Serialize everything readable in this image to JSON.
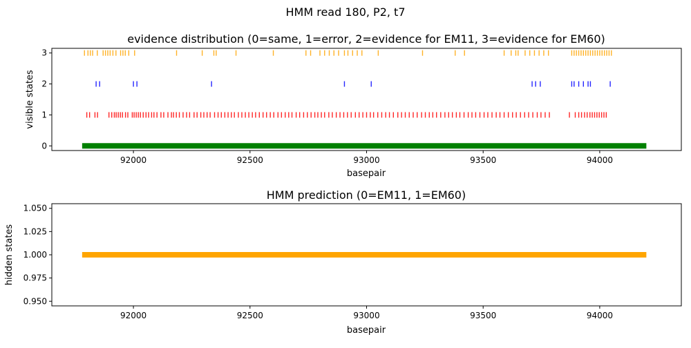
{
  "figure": {
    "suptitle": "HMM read 180, P2, t7"
  },
  "chart_data": [
    {
      "type": "scatter",
      "title": "evidence distribution (0=same, 1=error, 2=evidence for EM11, 3=evidence for EM60)",
      "xlabel": "basepair",
      "ylabel": "visible states",
      "xlim": [
        91650,
        94350
      ],
      "ylim": [
        -0.15,
        3.15
      ],
      "xticks": [
        92000,
        92500,
        93000,
        93500,
        94000
      ],
      "yticks": [
        0,
        1,
        2,
        3
      ],
      "grid": false,
      "series": [
        {
          "state": 0,
          "color": "#008000",
          "style": "band",
          "x_range": [
            91780,
            94200
          ]
        },
        {
          "state": 1,
          "color": "#ff0000",
          "x": [
            91800,
            91812,
            91835,
            91846,
            91895,
            91907,
            91918,
            91926,
            91935,
            91944,
            91953,
            91966,
            91976,
            91995,
            92003,
            92012,
            92021,
            92030,
            92042,
            92054,
            92065,
            92078,
            92088,
            92101,
            92118,
            92130,
            92148,
            92163,
            92172,
            92184,
            92197,
            92213,
            92228,
            92241,
            92260,
            92273,
            92289,
            92302,
            92316,
            92329,
            92348,
            92363,
            92377,
            92392,
            92406,
            92420,
            92433,
            92450,
            92465,
            92480,
            92495,
            92510,
            92524,
            92540,
            92556,
            92571,
            92587,
            92602,
            92620,
            92635,
            92651,
            92666,
            92680,
            92698,
            92713,
            92730,
            92746,
            92762,
            92778,
            92791,
            92806,
            92820,
            92838,
            92853,
            92870,
            92886,
            92902,
            92918,
            92934,
            92952,
            92968,
            92984,
            93000,
            93016,
            93030,
            93048,
            93065,
            93082,
            93098,
            93115,
            93134,
            93150,
            93166,
            93183,
            93200,
            93217,
            93236,
            93252,
            93269,
            93284,
            93300,
            93318,
            93336,
            93352,
            93368,
            93385,
            93400,
            93418,
            93436,
            93452,
            93468,
            93486,
            93504,
            93520,
            93538,
            93556,
            93572,
            93590,
            93608,
            93626,
            93642,
            93660,
            93678,
            93695,
            93713,
            93732,
            93748,
            93766,
            93784,
            93870,
            93895,
            93910,
            93922,
            93935,
            93946,
            93958,
            93968,
            93978,
            93988,
            93998,
            94008,
            94018,
            94028
          ]
        },
        {
          "state": 2,
          "color": "#0000ff",
          "x": [
            91840,
            91855,
            92000,
            92015,
            92335,
            92905,
            93020,
            93710,
            93725,
            93745,
            93880,
            93890,
            93910,
            93930,
            93950,
            93960,
            94045
          ]
        },
        {
          "state": 3,
          "color": "#ffa500",
          "x": [
            91790,
            91805,
            91815,
            91825,
            91845,
            91870,
            91880,
            91890,
            91900,
            91912,
            91925,
            91945,
            91955,
            91965,
            91980,
            92005,
            92185,
            92295,
            92345,
            92355,
            92440,
            92600,
            92740,
            92760,
            92800,
            92820,
            92840,
            92860,
            92880,
            92905,
            92920,
            92940,
            92960,
            92980,
            93050,
            93240,
            93380,
            93420,
            93590,
            93620,
            93640,
            93650,
            93680,
            93700,
            93720,
            93740,
            93760,
            93780,
            93880,
            93890,
            93900,
            93910,
            93920,
            93930,
            93940,
            93950,
            93960,
            93970,
            93980,
            93990,
            94000,
            94010,
            94020,
            94030,
            94040,
            94050
          ]
        }
      ]
    },
    {
      "type": "line",
      "title": "HMM prediction (0=EM11, 1=EM60)",
      "xlabel": "basepair",
      "ylabel": "hidden states",
      "xlim": [
        91650,
        94350
      ],
      "ylim": [
        0.945,
        1.055
      ],
      "xticks": [
        92000,
        92500,
        93000,
        93500,
        94000
      ],
      "yticks": [
        0.95,
        0.975,
        1.0,
        1.025,
        1.05
      ],
      "ytick_labels": [
        "0.950",
        "0.975",
        "1.000",
        "1.025",
        "1.050"
      ],
      "grid": false,
      "series": [
        {
          "color": "#ffa500",
          "x": [
            91780,
            94200
          ],
          "y": [
            1.0,
            1.0
          ]
        }
      ]
    }
  ]
}
